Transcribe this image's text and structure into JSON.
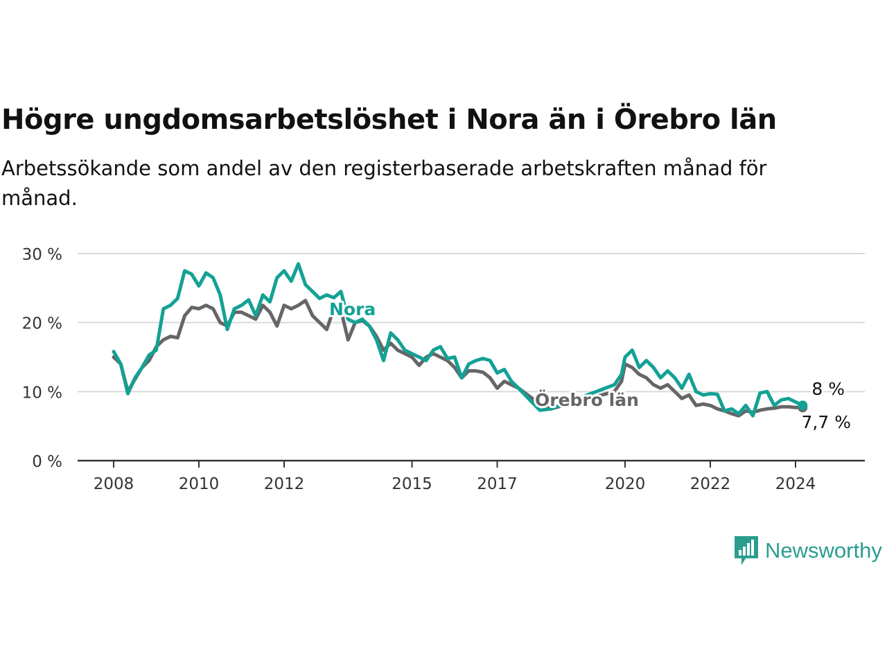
{
  "title": "Högre ungdomsarbetslöshet i Nora än i Örebro län",
  "subtitle": "Arbetssökande som andel av den registerbaserade arbetskraften månad för månad.",
  "brand": "Newsworthy",
  "colors": {
    "nora": "#14a195",
    "lan": "#666666",
    "grid": "#d9d9d9",
    "axis": "#333333"
  },
  "chart_data": {
    "type": "line",
    "unit": "%",
    "ylim": [
      0,
      30
    ],
    "yticks": [
      0,
      10,
      20,
      30
    ],
    "ytick_labels": [
      "0 %",
      "10 %",
      "20 %",
      "30 %"
    ],
    "xtick_labels": [
      "2008",
      "2010",
      "2012",
      "2015",
      "2017",
      "2020",
      "2022",
      "2024"
    ],
    "xlim": [
      "2008-01",
      "2024-12"
    ],
    "grid": true,
    "series": [
      {
        "name": "Nora",
        "end_label": "8 %",
        "points": [
          [
            "2008-01",
            15.8
          ],
          [
            "2008-03",
            14
          ],
          [
            "2008-05",
            9.7
          ],
          [
            "2008-07",
            12
          ],
          [
            "2008-09",
            13.5
          ],
          [
            "2008-11",
            15.3
          ],
          [
            "2009-01",
            16
          ],
          [
            "2009-03",
            22
          ],
          [
            "2009-05",
            22.5
          ],
          [
            "2009-07",
            23.5
          ],
          [
            "2009-09",
            27.5
          ],
          [
            "2009-11",
            27
          ],
          [
            "2010-01",
            25.3
          ],
          [
            "2010-03",
            27.2
          ],
          [
            "2010-05",
            26.5
          ],
          [
            "2010-07",
            24
          ],
          [
            "2010-09",
            19
          ],
          [
            "2010-11",
            22
          ],
          [
            "2011-01",
            22.5
          ],
          [
            "2011-03",
            23.3
          ],
          [
            "2011-05",
            21
          ],
          [
            "2011-07",
            24
          ],
          [
            "2011-09",
            23
          ],
          [
            "2011-11",
            26.5
          ],
          [
            "2012-01",
            27.5
          ],
          [
            "2012-03",
            26
          ],
          [
            "2012-05",
            28.5
          ],
          [
            "2012-07",
            25.5
          ],
          [
            "2012-09",
            24.5
          ],
          [
            "2012-11",
            23.5
          ],
          [
            "2013-01",
            24
          ],
          [
            "2013-03",
            23.6
          ],
          [
            "2013-05",
            24.5
          ],
          [
            "2013-07",
            20.5
          ],
          [
            "2013-09",
            20
          ],
          [
            "2013-11",
            20.5
          ],
          [
            "2014-01",
            19.5
          ],
          [
            "2014-03",
            17.5
          ],
          [
            "2014-05",
            14.5
          ],
          [
            "2014-07",
            18.5
          ],
          [
            "2014-09",
            17.5
          ],
          [
            "2014-11",
            16
          ],
          [
            "2015-01",
            15.5
          ],
          [
            "2015-03",
            15
          ],
          [
            "2015-05",
            14.5
          ],
          [
            "2015-07",
            16
          ],
          [
            "2015-09",
            16.5
          ],
          [
            "2015-11",
            14.8
          ],
          [
            "2016-01",
            15
          ],
          [
            "2016-03",
            12
          ],
          [
            "2016-05",
            14
          ],
          [
            "2016-07",
            14.5
          ],
          [
            "2016-09",
            14.8
          ],
          [
            "2016-11",
            14.5
          ],
          [
            "2017-01",
            12.7
          ],
          [
            "2017-03",
            13.2
          ],
          [
            "2017-05",
            11.5
          ],
          [
            "2017-07",
            10.5
          ],
          [
            "2018-01",
            7.3
          ],
          [
            "2018-04",
            7.5
          ],
          [
            "2019-10",
            11
          ],
          [
            "2019-12",
            12.5
          ],
          [
            "2020-01",
            15
          ],
          [
            "2020-03",
            16
          ],
          [
            "2020-05",
            13.5
          ],
          [
            "2020-07",
            14.5
          ],
          [
            "2020-09",
            13.5
          ],
          [
            "2020-11",
            12
          ],
          [
            "2021-01",
            13
          ],
          [
            "2021-03",
            12
          ],
          [
            "2021-05",
            10.5
          ],
          [
            "2021-07",
            12.5
          ],
          [
            "2021-09",
            10
          ],
          [
            "2021-11",
            9.5
          ],
          [
            "2022-01",
            9.7
          ],
          [
            "2022-03",
            9.6
          ],
          [
            "2022-05",
            7.2
          ],
          [
            "2022-07",
            7.5
          ],
          [
            "2022-09",
            6.8
          ],
          [
            "2022-11",
            8
          ],
          [
            "2023-01",
            6.5
          ],
          [
            "2023-03",
            9.8
          ],
          [
            "2023-05",
            10
          ],
          [
            "2023-07",
            8
          ],
          [
            "2023-09",
            8.8
          ],
          [
            "2023-11",
            9
          ],
          [
            "2024-01",
            8.5
          ],
          [
            "2024-03",
            8
          ]
        ]
      },
      {
        "name": "Örebro län",
        "end_label": "7,7 %",
        "points": [
          [
            "2008-01",
            15
          ],
          [
            "2008-03",
            14
          ],
          [
            "2008-05",
            10
          ],
          [
            "2008-07",
            11.8
          ],
          [
            "2008-09",
            13.5
          ],
          [
            "2008-11",
            14.5
          ],
          [
            "2009-01",
            16.5
          ],
          [
            "2009-03",
            17.5
          ],
          [
            "2009-05",
            18
          ],
          [
            "2009-07",
            17.8
          ],
          [
            "2009-09",
            21
          ],
          [
            "2009-11",
            22.2
          ],
          [
            "2010-01",
            22
          ],
          [
            "2010-03",
            22.5
          ],
          [
            "2010-05",
            22
          ],
          [
            "2010-07",
            20
          ],
          [
            "2010-09",
            19.5
          ],
          [
            "2010-11",
            21.5
          ],
          [
            "2011-01",
            21.5
          ],
          [
            "2011-03",
            21
          ],
          [
            "2011-05",
            20.5
          ],
          [
            "2011-07",
            22.5
          ],
          [
            "2011-09",
            21.5
          ],
          [
            "2011-11",
            19.5
          ],
          [
            "2012-01",
            22.5
          ],
          [
            "2012-03",
            22
          ],
          [
            "2012-05",
            22.5
          ],
          [
            "2012-07",
            23.2
          ],
          [
            "2012-09",
            21
          ],
          [
            "2012-11",
            20
          ],
          [
            "2013-01",
            19
          ],
          [
            "2013-03",
            22
          ],
          [
            "2013-05",
            21.8
          ],
          [
            "2013-07",
            17.5
          ],
          [
            "2013-09",
            20
          ],
          [
            "2013-11",
            20.3
          ],
          [
            "2014-01",
            19.5
          ],
          [
            "2014-03",
            18
          ],
          [
            "2014-05",
            16
          ],
          [
            "2014-07",
            17
          ],
          [
            "2014-09",
            16
          ],
          [
            "2014-11",
            15.5
          ],
          [
            "2015-01",
            15
          ],
          [
            "2015-03",
            13.8
          ],
          [
            "2015-05",
            15
          ],
          [
            "2015-07",
            15.5
          ],
          [
            "2015-09",
            15
          ],
          [
            "2015-11",
            14.5
          ],
          [
            "2016-01",
            13.5
          ],
          [
            "2016-03",
            12
          ],
          [
            "2016-05",
            13
          ],
          [
            "2016-07",
            13
          ],
          [
            "2016-09",
            12.8
          ],
          [
            "2016-11",
            12
          ],
          [
            "2017-01",
            10.5
          ],
          [
            "2017-03",
            11.5
          ],
          [
            "2017-05",
            11
          ],
          [
            "2017-07",
            10.5
          ],
          [
            "2018-01",
            8.2
          ],
          [
            "2018-04",
            7.5
          ],
          [
            "2019-10",
            10
          ],
          [
            "2019-12",
            11.5
          ],
          [
            "2020-01",
            14
          ],
          [
            "2020-03",
            13.5
          ],
          [
            "2020-05",
            12.5
          ],
          [
            "2020-07",
            12
          ],
          [
            "2020-09",
            11
          ],
          [
            "2020-11",
            10.5
          ],
          [
            "2021-01",
            11
          ],
          [
            "2021-03",
            10
          ],
          [
            "2021-05",
            9
          ],
          [
            "2021-07",
            9.5
          ],
          [
            "2021-09",
            8
          ],
          [
            "2021-11",
            8.2
          ],
          [
            "2022-01",
            8
          ],
          [
            "2022-03",
            7.5
          ],
          [
            "2022-05",
            7.2
          ],
          [
            "2022-07",
            6.8
          ],
          [
            "2022-09",
            6.5
          ],
          [
            "2022-11",
            7.2
          ],
          [
            "2023-01",
            7
          ],
          [
            "2023-03",
            7.3
          ],
          [
            "2023-05",
            7.5
          ],
          [
            "2023-07",
            7.6
          ],
          [
            "2023-09",
            7.8
          ],
          [
            "2023-11",
            7.8
          ],
          [
            "2024-01",
            7.7
          ],
          [
            "2024-03",
            7.7
          ]
        ]
      }
    ]
  }
}
